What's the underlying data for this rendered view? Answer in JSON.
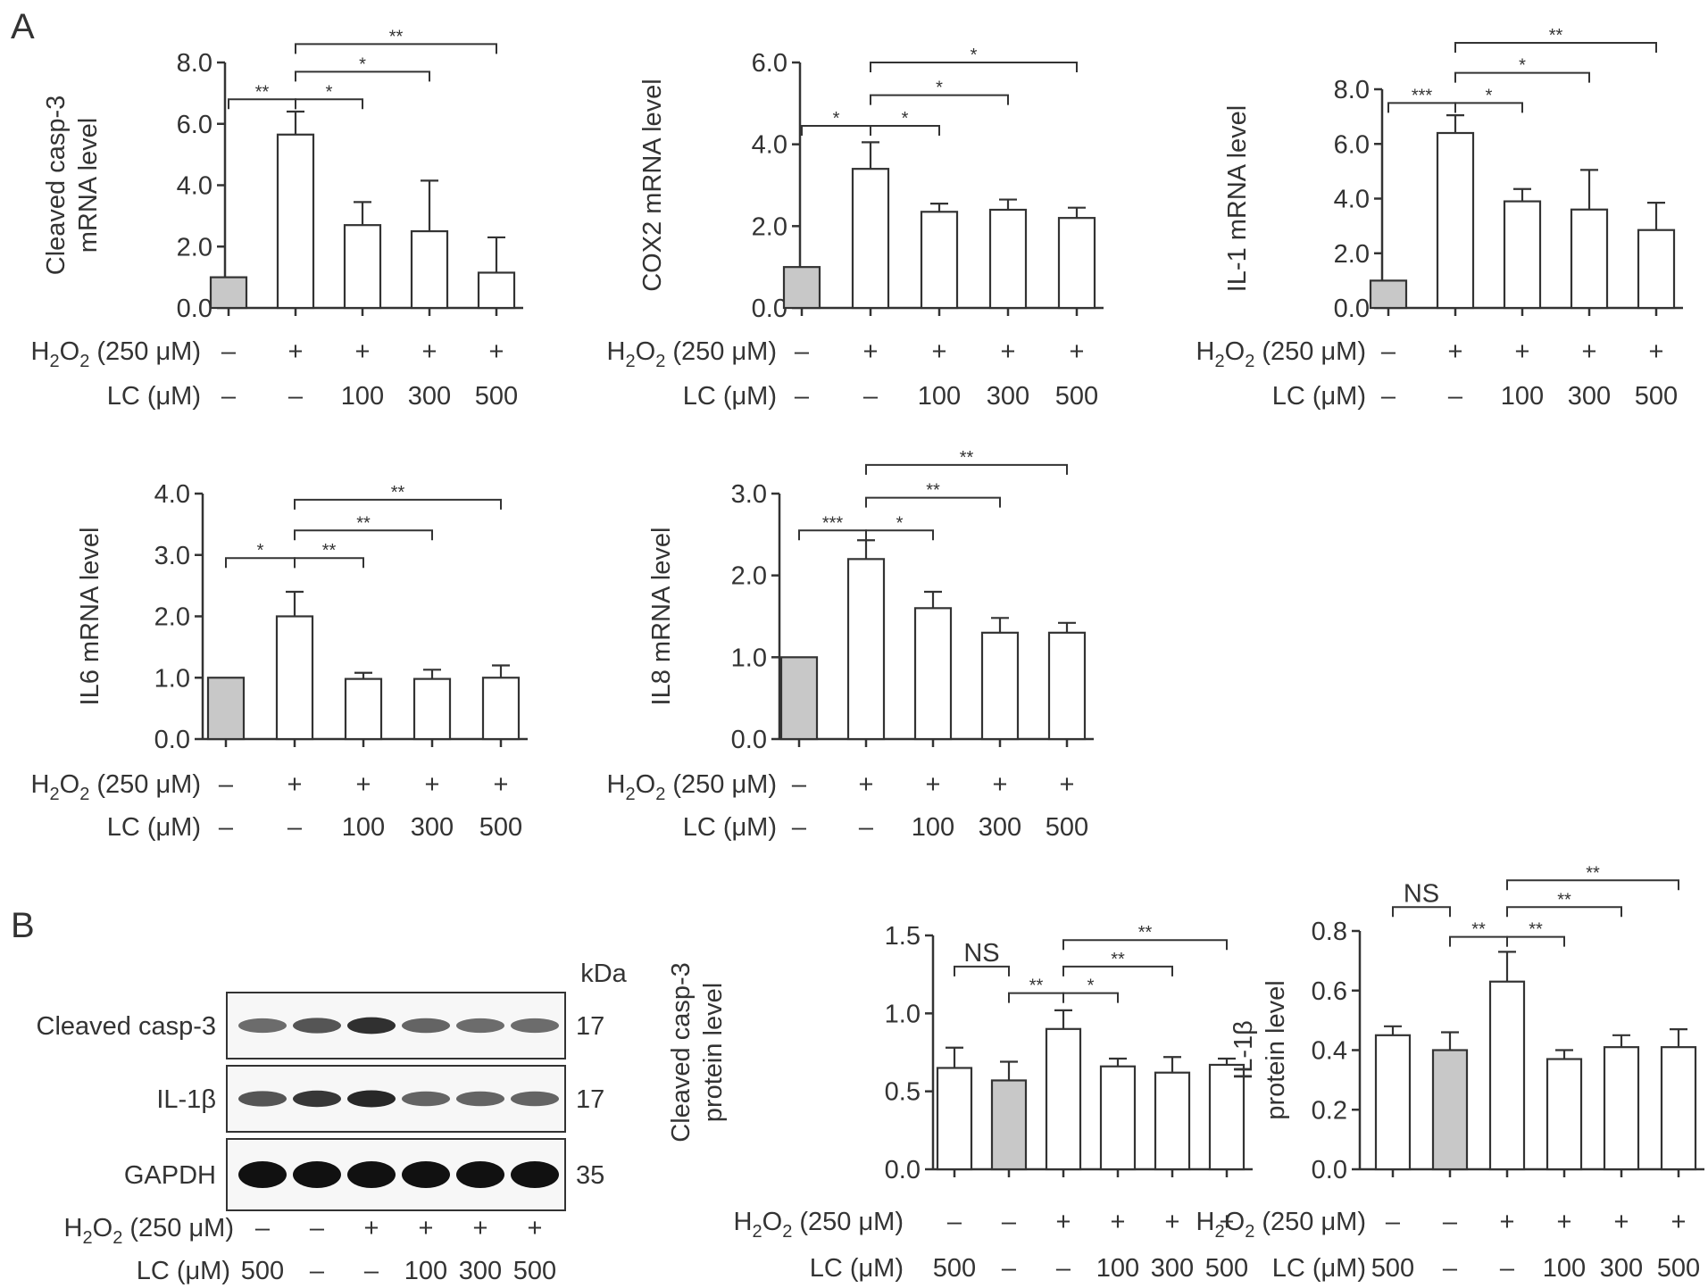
{
  "figure": {
    "panel_a_label": "A",
    "panel_b_label": "B",
    "row_labels": {
      "h2o2": {
        "main": "H",
        "sub1": "2",
        "mid": "O",
        "sub2": "2",
        "rest": " (250 μM)"
      },
      "lc": "LC (μM)"
    },
    "blot": {
      "kda_label": "kDa",
      "rows": [
        {
          "label": "Cleaved casp-3",
          "kda": "17",
          "intensity": [
            0.55,
            0.7,
            0.95,
            0.6,
            0.55,
            0.55
          ]
        },
        {
          "label": "IL-1β",
          "kda": "17",
          "intensity": [
            0.7,
            0.9,
            1.0,
            0.6,
            0.6,
            0.6
          ]
        },
        {
          "label": "GAPDH",
          "kda": "35",
          "intensity": [
            1,
            1,
            1,
            1,
            1,
            1
          ]
        }
      ],
      "h2o2": [
        "–",
        "–",
        "+",
        "+",
        "+",
        "+"
      ],
      "lc": [
        "500",
        "–",
        "–",
        "100",
        "300",
        "500"
      ]
    }
  },
  "chart_data": [
    {
      "type": "bar",
      "ylabel_lines": [
        "Cleaved casp-3",
        "mRNA level"
      ],
      "ylim": [
        0,
        8
      ],
      "yticks": [
        "0.0",
        "2.0",
        "4.0",
        "6.0",
        "8.0"
      ],
      "values": [
        1.0,
        5.65,
        2.7,
        2.5,
        1.15
      ],
      "errors": [
        0,
        0.75,
        0.75,
        1.65,
        1.15
      ],
      "fill": [
        "#c8c8c8",
        "#ffffff",
        "#ffffff",
        "#ffffff",
        "#ffffff"
      ],
      "h2o2": [
        "–",
        "+",
        "+",
        "+",
        "+"
      ],
      "lc": [
        "–",
        "–",
        "100",
        "300",
        "500"
      ],
      "brackets": [
        {
          "from": 0,
          "to": 1,
          "y": 6.8,
          "label": "**"
        },
        {
          "from": 1,
          "to": 2,
          "y": 6.8,
          "label": "*"
        },
        {
          "from": 1,
          "to": 3,
          "y": 7.7,
          "label": "*"
        },
        {
          "from": 1,
          "to": 4,
          "y": 8.6,
          "label": "**"
        }
      ]
    },
    {
      "type": "bar",
      "ylabel_lines": [
        "COX2 mRNA level"
      ],
      "ylim": [
        0,
        6
      ],
      "yticks": [
        "0.0",
        "2.0",
        "4.0",
        "6.0"
      ],
      "values": [
        1.0,
        3.4,
        2.35,
        2.4,
        2.2
      ],
      "errors": [
        0,
        0.65,
        0.2,
        0.25,
        0.25
      ],
      "fill": [
        "#c8c8c8",
        "#ffffff",
        "#ffffff",
        "#ffffff",
        "#ffffff"
      ],
      "h2o2": [
        "–",
        "+",
        "+",
        "+",
        "+"
      ],
      "lc": [
        "–",
        "–",
        "100",
        "300",
        "500"
      ],
      "brackets": [
        {
          "from": 0,
          "to": 1,
          "y": 4.45,
          "label": "*"
        },
        {
          "from": 1,
          "to": 2,
          "y": 4.45,
          "label": "*"
        },
        {
          "from": 1,
          "to": 3,
          "y": 5.2,
          "label": "*"
        },
        {
          "from": 1,
          "to": 4,
          "y": 6.0,
          "label": "*"
        }
      ]
    },
    {
      "type": "bar",
      "ylabel_lines": [
        "IL-1 mRNA level"
      ],
      "ylim": [
        0,
        8
      ],
      "yticks": [
        "0.0",
        "2.0",
        "4.0",
        "6.0",
        "8.0"
      ],
      "values": [
        1.0,
        6.4,
        3.9,
        3.6,
        2.85
      ],
      "errors": [
        0,
        0.65,
        0.45,
        1.45,
        1.0
      ],
      "fill": [
        "#c8c8c8",
        "#ffffff",
        "#ffffff",
        "#ffffff",
        "#ffffff"
      ],
      "h2o2": [
        "–",
        "+",
        "+",
        "+",
        "+"
      ],
      "lc": [
        "–",
        "–",
        "100",
        "300",
        "500"
      ],
      "brackets": [
        {
          "from": 0,
          "to": 1,
          "y": 7.5,
          "label": "***"
        },
        {
          "from": 1,
          "to": 2,
          "y": 7.5,
          "label": "*"
        },
        {
          "from": 1,
          "to": 3,
          "y": 8.6,
          "label": "*"
        },
        {
          "from": 1,
          "to": 4,
          "y": 9.7,
          "label": "**"
        }
      ]
    },
    {
      "type": "bar",
      "ylabel_lines": [
        "IL6 mRNA level"
      ],
      "ylim": [
        0,
        4
      ],
      "yticks": [
        "0.0",
        "1.0",
        "2.0",
        "3.0",
        "4.0"
      ],
      "values": [
        1.0,
        2.0,
        0.98,
        0.98,
        1.0
      ],
      "errors": [
        0,
        0.4,
        0.1,
        0.15,
        0.2
      ],
      "fill": [
        "#c8c8c8",
        "#ffffff",
        "#ffffff",
        "#ffffff",
        "#ffffff"
      ],
      "h2o2": [
        "–",
        "+",
        "+",
        "+",
        "+"
      ],
      "lc": [
        "–",
        "–",
        "100",
        "300",
        "500"
      ],
      "brackets": [
        {
          "from": 0,
          "to": 1,
          "y": 2.95,
          "label": "*"
        },
        {
          "from": 1,
          "to": 2,
          "y": 2.95,
          "label": "**"
        },
        {
          "from": 1,
          "to": 3,
          "y": 3.4,
          "label": "**"
        },
        {
          "from": 1,
          "to": 4,
          "y": 3.9,
          "label": "**"
        }
      ]
    },
    {
      "type": "bar",
      "ylabel_lines": [
        "IL8 mRNA level"
      ],
      "ylim": [
        0,
        3
      ],
      "yticks": [
        "0.0",
        "1.0",
        "2.0",
        "3.0"
      ],
      "values": [
        1.0,
        2.2,
        1.6,
        1.3,
        1.3
      ],
      "errors": [
        0,
        0.23,
        0.2,
        0.18,
        0.12
      ],
      "fill": [
        "#c8c8c8",
        "#ffffff",
        "#ffffff",
        "#ffffff",
        "#ffffff"
      ],
      "h2o2": [
        "–",
        "+",
        "+",
        "+",
        "+"
      ],
      "lc": [
        "–",
        "–",
        "100",
        "300",
        "500"
      ],
      "brackets": [
        {
          "from": 0,
          "to": 1,
          "y": 2.55,
          "label": "***"
        },
        {
          "from": 1,
          "to": 2,
          "y": 2.55,
          "label": "*"
        },
        {
          "from": 1,
          "to": 3,
          "y": 2.95,
          "label": "**"
        },
        {
          "from": 1,
          "to": 4,
          "y": 3.35,
          "label": "**"
        }
      ]
    },
    {
      "type": "bar",
      "ylabel_lines": [
        "Cleaved casp-3",
        "protein level"
      ],
      "ylim": [
        0,
        1.5
      ],
      "yticks": [
        "0.0",
        "0.5",
        "1.0",
        "1.5"
      ],
      "values": [
        0.65,
        0.57,
        0.9,
        0.66,
        0.62,
        0.67
      ],
      "errors": [
        0.13,
        0.12,
        0.12,
        0.05,
        0.1,
        0.04
      ],
      "fill": [
        "#ffffff",
        "#c8c8c8",
        "#ffffff",
        "#ffffff",
        "#ffffff",
        "#ffffff"
      ],
      "h2o2": [
        "–",
        "–",
        "+",
        "+",
        "+",
        "+"
      ],
      "lc": [
        "500",
        "–",
        "–",
        "100",
        "300",
        "500"
      ],
      "brackets": [
        {
          "from": 0,
          "to": 1,
          "y": 1.3,
          "label": "NS",
          "big": true
        },
        {
          "from": 1,
          "to": 2,
          "y": 1.13,
          "label": "**"
        },
        {
          "from": 2,
          "to": 3,
          "y": 1.13,
          "label": "*"
        },
        {
          "from": 2,
          "to": 4,
          "y": 1.3,
          "label": "**"
        },
        {
          "from": 2,
          "to": 5,
          "y": 1.47,
          "label": "**"
        }
      ]
    },
    {
      "type": "bar",
      "ylabel_lines": [
        "IL-1β",
        "protein level"
      ],
      "ylim": [
        0,
        0.8
      ],
      "yticks": [
        "0.0",
        "0.2",
        "0.4",
        "0.6",
        "0.8"
      ],
      "values": [
        0.45,
        0.4,
        0.63,
        0.37,
        0.41,
        0.41
      ],
      "errors": [
        0.03,
        0.06,
        0.1,
        0.03,
        0.04,
        0.06
      ],
      "fill": [
        "#ffffff",
        "#c8c8c8",
        "#ffffff",
        "#ffffff",
        "#ffffff",
        "#ffffff"
      ],
      "h2o2": [
        "–",
        "–",
        "+",
        "+",
        "+",
        "+"
      ],
      "lc": [
        "500",
        "–",
        "–",
        "100",
        "300",
        "500"
      ],
      "brackets": [
        {
          "from": 0,
          "to": 1,
          "y": 0.88,
          "label": "NS",
          "big": true
        },
        {
          "from": 1,
          "to": 2,
          "y": 0.78,
          "label": "**"
        },
        {
          "from": 2,
          "to": 3,
          "y": 0.78,
          "label": "**"
        },
        {
          "from": 2,
          "to": 4,
          "y": 0.88,
          "label": "**"
        },
        {
          "from": 2,
          "to": 5,
          "y": 0.97,
          "label": "**"
        }
      ]
    }
  ]
}
